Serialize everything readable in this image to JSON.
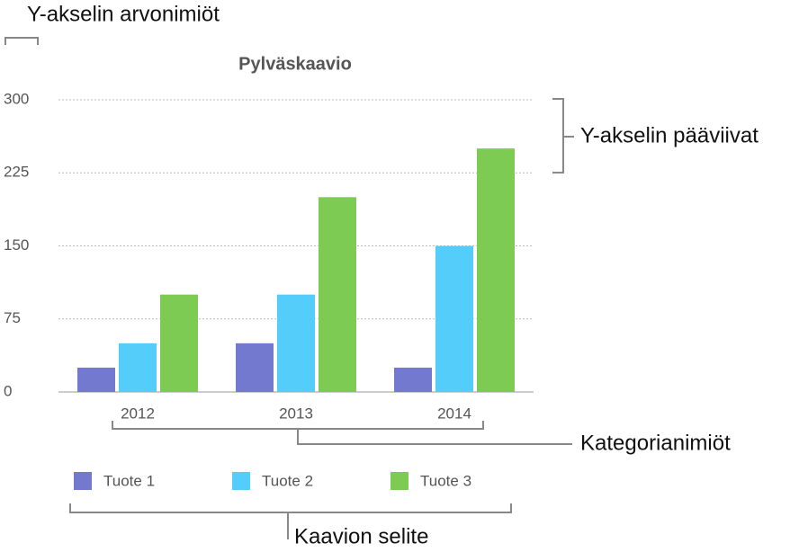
{
  "chart_data": {
    "type": "bar",
    "title": "Pylväskaavio",
    "categories": [
      "2012",
      "2013",
      "2014"
    ],
    "series": [
      {
        "name": "Tuote 1",
        "color": "#7479d0",
        "values": [
          25,
          50,
          25
        ]
      },
      {
        "name": "Tuote 2",
        "color": "#54cdfb",
        "values": [
          50,
          100,
          150
        ]
      },
      {
        "name": "Tuote 3",
        "color": "#7dcb52",
        "values": [
          100,
          200,
          250
        ]
      }
    ],
    "ylim": [
      0,
      300
    ],
    "yticks": [
      0,
      75,
      150,
      225,
      300
    ],
    "grid": true,
    "legend": "bottom",
    "annotations": [
      "Y-akselin arvonimiöt",
      "Y-akselin pääviivat",
      "Kategorianimiöt",
      "Kaavion selite"
    ]
  }
}
